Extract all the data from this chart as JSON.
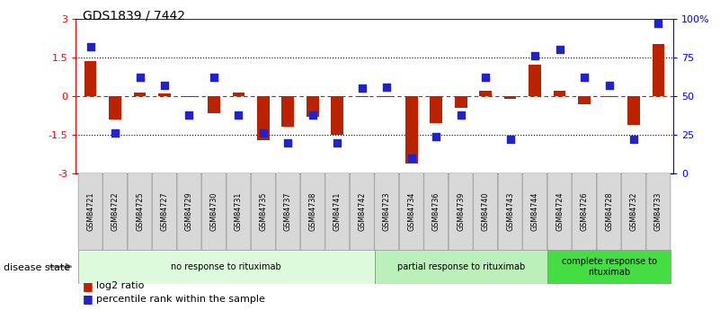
{
  "title": "GDS1839 / 7442",
  "samples": [
    "GSM84721",
    "GSM84722",
    "GSM84725",
    "GSM84727",
    "GSM84729",
    "GSM84730",
    "GSM84731",
    "GSM84735",
    "GSM84737",
    "GSM84738",
    "GSM84741",
    "GSM84742",
    "GSM84723",
    "GSM84734",
    "GSM84736",
    "GSM84739",
    "GSM84740",
    "GSM84743",
    "GSM84744",
    "GSM84724",
    "GSM84726",
    "GSM84728",
    "GSM84732",
    "GSM84733"
  ],
  "log2_ratio": [
    1.35,
    -0.9,
    0.15,
    0.1,
    -0.05,
    -0.65,
    0.15,
    -1.7,
    -1.2,
    -0.8,
    -1.5,
    -0.05,
    -0.05,
    -2.6,
    -1.05,
    -0.45,
    0.2,
    -0.1,
    1.2,
    0.2,
    -0.3,
    -0.05,
    -1.1,
    2.0
  ],
  "percentile": [
    82,
    26,
    62,
    57,
    38,
    62,
    38,
    26,
    20,
    38,
    20,
    55,
    56,
    10,
    24,
    38,
    62,
    22,
    76,
    80,
    62,
    57,
    22,
    97
  ],
  "groups": [
    {
      "label": "no response to rituximab",
      "start": 0,
      "end": 12,
      "color": "#ddfadd"
    },
    {
      "label": "partial response to rituximab",
      "start": 12,
      "end": 19,
      "color": "#bbf0bb"
    },
    {
      "label": "complete response to\nrituximab",
      "start": 19,
      "end": 24,
      "color": "#44dd44"
    }
  ],
  "ylim_left": [
    -3,
    3
  ],
  "yticks_left": [
    -3,
    -1.5,
    0,
    1.5,
    3
  ],
  "yticks_right": [
    0,
    25,
    50,
    75,
    100
  ],
  "ytick_labels_left": [
    "-3",
    "-1.5",
    "0",
    "1.5",
    "3"
  ],
  "ytick_labels_right": [
    "0",
    "25",
    "50",
    "75",
    "100%"
  ],
  "bar_color": "#bb2200",
  "dot_color": "#2222cc",
  "legend_items": [
    "log2 ratio",
    "percentile rank within the sample"
  ],
  "disease_state_label": "disease state"
}
